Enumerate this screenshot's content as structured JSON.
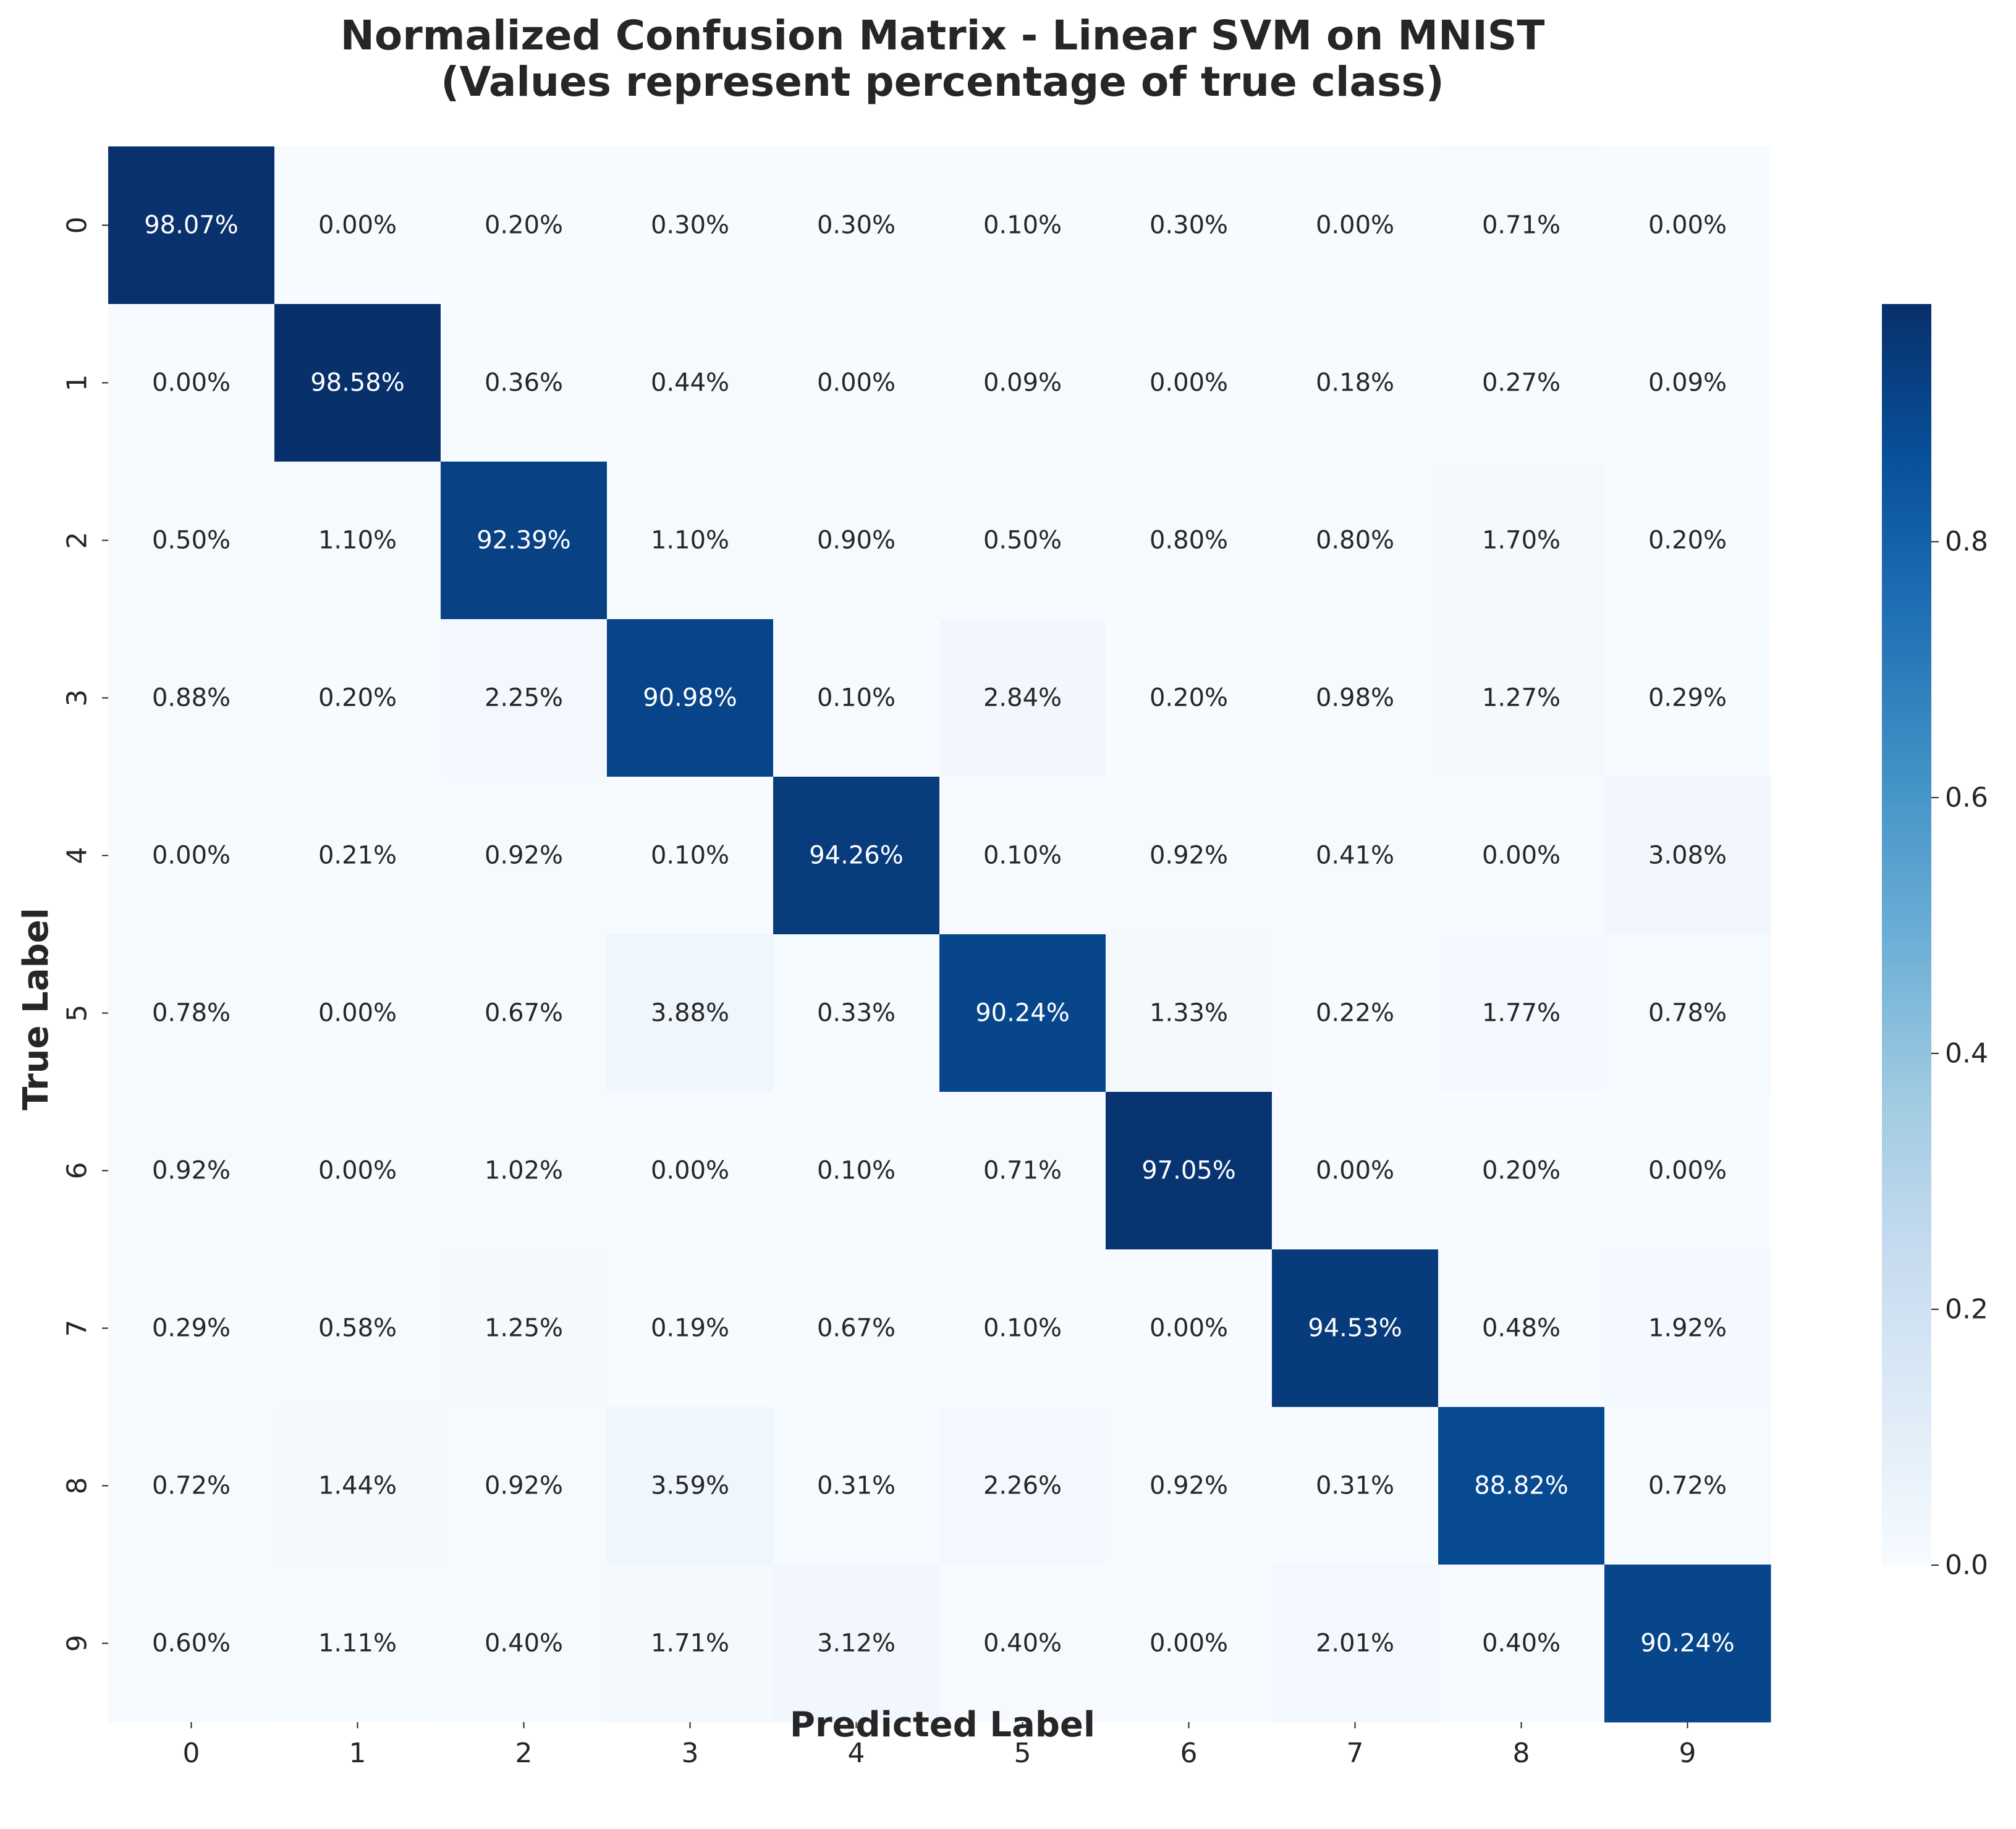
{
  "chart_data": {
    "type": "heatmap",
    "title_lines": [
      "Normalized Confusion Matrix - Linear SVM on MNIST",
      "(Values represent percentage of true class)"
    ],
    "xlabel": "Predicted Label",
    "ylabel": "True Label",
    "x_categories": [
      "0",
      "1",
      "2",
      "3",
      "4",
      "5",
      "6",
      "7",
      "8",
      "9"
    ],
    "y_categories": [
      "0",
      "1",
      "2",
      "3",
      "4",
      "5",
      "6",
      "7",
      "8",
      "9"
    ],
    "value_format": "percent_2dp",
    "values": [
      [
        0.9807,
        0.0,
        0.002,
        0.003,
        0.003,
        0.001,
        0.003,
        0.0,
        0.0071,
        0.0
      ],
      [
        0.0,
        0.9858,
        0.0036,
        0.0044,
        0.0,
        0.0009,
        0.0,
        0.0018,
        0.0027,
        0.0009
      ],
      [
        0.005,
        0.011,
        0.9239,
        0.011,
        0.009,
        0.005,
        0.008,
        0.008,
        0.017,
        0.002
      ],
      [
        0.0088,
        0.002,
        0.0225,
        0.9098,
        0.001,
        0.0284,
        0.002,
        0.0098,
        0.0127,
        0.0029
      ],
      [
        0.0,
        0.0021,
        0.0092,
        0.001,
        0.9426,
        0.001,
        0.0092,
        0.0041,
        0.0,
        0.0308
      ],
      [
        0.0078,
        0.0,
        0.0067,
        0.0388,
        0.0033,
        0.9024,
        0.0133,
        0.0022,
        0.0177,
        0.0078
      ],
      [
        0.0092,
        0.0,
        0.0102,
        0.0,
        0.001,
        0.0071,
        0.9705,
        0.0,
        0.002,
        0.0
      ],
      [
        0.0029,
        0.0058,
        0.0125,
        0.0019,
        0.0067,
        0.001,
        0.0,
        0.9453,
        0.0048,
        0.0192
      ],
      [
        0.0072,
        0.0144,
        0.0092,
        0.0359,
        0.0031,
        0.0226,
        0.0092,
        0.0031,
        0.8882,
        0.0072
      ],
      [
        0.006,
        0.0111,
        0.004,
        0.0171,
        0.0312,
        0.004,
        0.0,
        0.0201,
        0.004,
        0.9024
      ]
    ],
    "colormap": "Blues",
    "colormap_stops": [
      "#f7fbff",
      "#deebf7",
      "#c6dbef",
      "#9ecae1",
      "#6baed6",
      "#4292c6",
      "#2171b5",
      "#08519c",
      "#08306b"
    ],
    "color_range": [
      0.0,
      0.9858
    ],
    "colorbar": {
      "ticks": [
        0.0,
        0.2,
        0.4,
        0.6,
        0.8
      ],
      "tick_labels": [
        "0.0",
        "0.2",
        "0.4",
        "0.6",
        "0.8"
      ]
    }
  }
}
